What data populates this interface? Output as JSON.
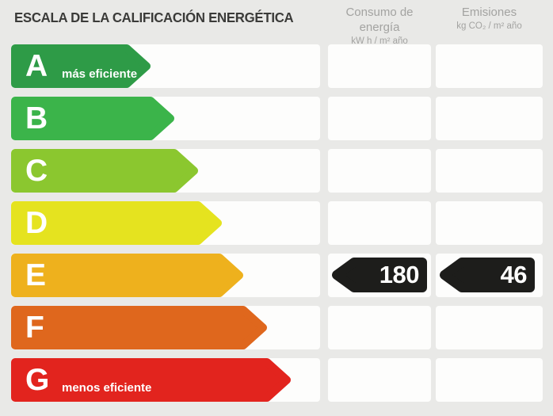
{
  "title": "ESCALA DE LA CALIFICACIÓN ENERGÉTICA",
  "columns": {
    "consumo": {
      "label": "Consumo de energía",
      "units": "kW h / m² año"
    },
    "emisiones": {
      "label": "Emisiones",
      "units": "kg CO₂ / m² año"
    }
  },
  "scale": {
    "rows": [
      {
        "letter": "A",
        "label": "más eficiente",
        "color": "#2e9b47",
        "arrow_width": 176,
        "consumo": "",
        "emisiones": ""
      },
      {
        "letter": "B",
        "label": "",
        "color": "#3bb44a",
        "arrow_width": 206,
        "consumo": "",
        "emisiones": ""
      },
      {
        "letter": "C",
        "label": "",
        "color": "#8bc72f",
        "arrow_width": 236,
        "consumo": "",
        "emisiones": ""
      },
      {
        "letter": "D",
        "label": "",
        "color": "#e5e31f",
        "arrow_width": 266,
        "consumo": "",
        "emisiones": ""
      },
      {
        "letter": "E",
        "label": "",
        "color": "#eeb11d",
        "arrow_width": 293,
        "consumo": "180",
        "emisiones": "46"
      },
      {
        "letter": "F",
        "label": "",
        "color": "#df671d",
        "arrow_width": 323,
        "consumo": "",
        "emisiones": ""
      },
      {
        "letter": "G",
        "label": "menos eficiente",
        "color": "#e2241e",
        "arrow_width": 353,
        "consumo": "",
        "emisiones": ""
      }
    ]
  },
  "rating": {
    "grade": "E",
    "consumo_value": "180",
    "emisiones_value": "46"
  },
  "colors": {
    "background": "#e9e9e7",
    "cell_white": "#fdfdfc",
    "badge_black": "#1d1d1b",
    "title_text": "#3b3b39",
    "header_text": "#a3a3a1"
  },
  "chart_data": {
    "type": "bar",
    "title": "ESCALA DE LA CALIFICACIÓN ENERGÉTICA",
    "categories": [
      "A",
      "B",
      "C",
      "D",
      "E",
      "F",
      "G"
    ],
    "bar_colors": [
      "#2e9b47",
      "#3bb44a",
      "#8bc72f",
      "#e5e31f",
      "#eeb11d",
      "#df671d",
      "#e2241e"
    ],
    "bar_relative_lengths": [
      176,
      206,
      236,
      266,
      293,
      323,
      353
    ],
    "category_notes": {
      "A": "más eficiente",
      "G": "menos eficiente"
    },
    "series": [
      {
        "name": "Consumo de energía (kW h / m² año)",
        "values": [
          null,
          null,
          null,
          null,
          180,
          null,
          null
        ]
      },
      {
        "name": "Emisiones (kg CO₂ / m² año)",
        "values": [
          null,
          null,
          null,
          null,
          46,
          null,
          null
        ]
      }
    ],
    "highlighted_category": "E",
    "legend_position": "none",
    "grid": false
  }
}
